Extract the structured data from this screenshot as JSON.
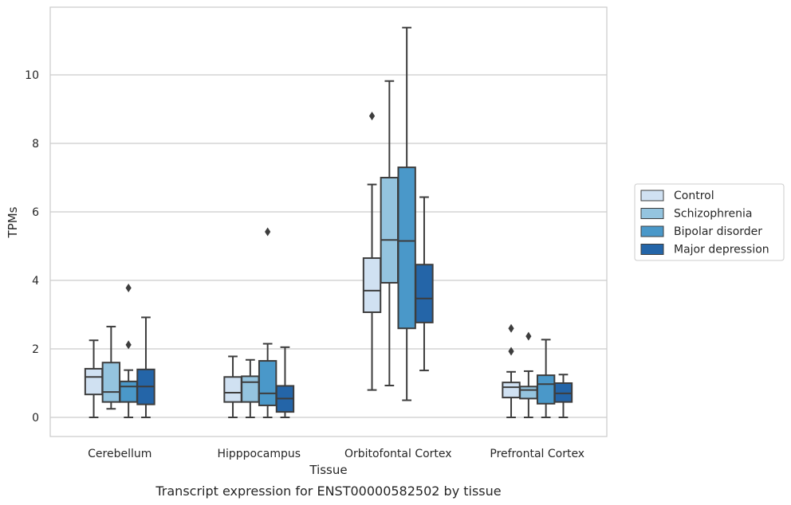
{
  "chart_data": {
    "type": "boxplot",
    "title": "",
    "caption": "Transcript expression for ENST00000582502 by tissue",
    "xlabel": "Tissue",
    "ylabel": "TPMs",
    "ylim": [
      -0.55,
      12.0
    ],
    "yticks": [
      0,
      2,
      4,
      6,
      8,
      10
    ],
    "grid": "horizontal",
    "legend_position": "right",
    "categories": [
      "Cerebellum",
      "Hipppocampus",
      "Orbitofontal Cortex",
      "Prefrontal Cortex"
    ],
    "series": [
      {
        "name": "Control",
        "color": "#d0e1f2",
        "boxes": [
          {
            "whislo": 0.0,
            "q1": 0.67,
            "med": 1.18,
            "q3": 1.42,
            "whishi": 2.25,
            "fliers": []
          },
          {
            "whislo": 0.0,
            "q1": 0.45,
            "med": 0.72,
            "q3": 1.18,
            "whishi": 1.78,
            "fliers": []
          },
          {
            "whislo": 0.8,
            "q1": 3.07,
            "med": 3.7,
            "q3": 4.65,
            "whishi": 6.8,
            "fliers": [
              8.8
            ]
          },
          {
            "whislo": 0.0,
            "q1": 0.58,
            "med": 0.88,
            "q3": 1.02,
            "whishi": 1.33,
            "fliers": [
              1.93,
              2.6
            ]
          }
        ]
      },
      {
        "name": "Schizophrenia",
        "color": "#94c4df",
        "boxes": [
          {
            "whislo": 0.25,
            "q1": 0.45,
            "med": 0.74,
            "q3": 1.6,
            "whishi": 2.65,
            "fliers": []
          },
          {
            "whislo": 0.0,
            "q1": 0.45,
            "med": 1.03,
            "q3": 1.2,
            "whishi": 1.68,
            "fliers": []
          },
          {
            "whislo": 0.93,
            "q1": 3.93,
            "med": 5.18,
            "q3": 7.0,
            "whishi": 9.82,
            "fliers": []
          },
          {
            "whislo": 0.0,
            "q1": 0.55,
            "med": 0.8,
            "q3": 0.9,
            "whishi": 1.35,
            "fliers": [
              2.37
            ]
          }
        ]
      },
      {
        "name": "Bipolar disorder",
        "color": "#4a98c9",
        "boxes": [
          {
            "whislo": 0.0,
            "q1": 0.45,
            "med": 0.9,
            "q3": 1.05,
            "whishi": 1.38,
            "fliers": [
              2.12,
              3.78
            ]
          },
          {
            "whislo": 0.0,
            "q1": 0.35,
            "med": 0.7,
            "q3": 1.65,
            "whishi": 2.15,
            "fliers": [
              5.42
            ]
          },
          {
            "whislo": 0.5,
            "q1": 2.6,
            "med": 5.15,
            "q3": 7.3,
            "whishi": 11.38,
            "fliers": []
          },
          {
            "whislo": 0.0,
            "q1": 0.4,
            "med": 0.97,
            "q3": 1.23,
            "whishi": 2.27,
            "fliers": []
          }
        ]
      },
      {
        "name": "Major depression",
        "color": "#2465a8",
        "boxes": [
          {
            "whislo": 0.0,
            "q1": 0.38,
            "med": 0.9,
            "q3": 1.4,
            "whishi": 2.92,
            "fliers": []
          },
          {
            "whislo": 0.0,
            "q1": 0.16,
            "med": 0.55,
            "q3": 0.92,
            "whishi": 2.05,
            "fliers": []
          },
          {
            "whislo": 1.37,
            "q1": 2.77,
            "med": 3.47,
            "q3": 4.46,
            "whishi": 6.43,
            "fliers": []
          },
          {
            "whislo": 0.0,
            "q1": 0.45,
            "med": 0.7,
            "q3": 1.0,
            "whishi": 1.25,
            "fliers": []
          }
        ]
      }
    ]
  }
}
